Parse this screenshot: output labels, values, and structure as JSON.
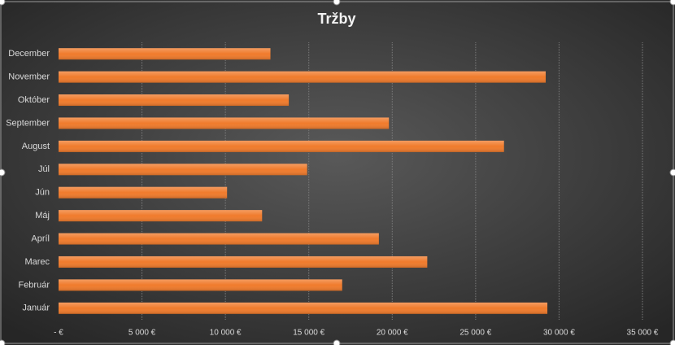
{
  "chart_data": {
    "type": "bar",
    "orientation": "horizontal",
    "title": "Tržby",
    "categories": [
      "Január",
      "Február",
      "Marec",
      "Apríl",
      "Máj",
      "Jún",
      "Júl",
      "August",
      "September",
      "Október",
      "November",
      "December"
    ],
    "values": [
      29300,
      17000,
      22100,
      19200,
      12200,
      10100,
      14900,
      26700,
      19800,
      13800,
      29200,
      12700
    ],
    "color": "#f07b2c",
    "xlim": [
      0,
      35000
    ],
    "xticks": [
      {
        "value": 0,
        "label": "-  €"
      },
      {
        "value": 5000,
        "label": "5 000 €"
      },
      {
        "value": 10000,
        "label": "10 000 €"
      },
      {
        "value": 15000,
        "label": "15 000 €"
      },
      {
        "value": 20000,
        "label": "20 000 €"
      },
      {
        "value": 25000,
        "label": "25 000 €"
      },
      {
        "value": 30000,
        "label": "30 000 €"
      },
      {
        "value": 35000,
        "label": "35 000 €"
      }
    ],
    "grid": true
  }
}
